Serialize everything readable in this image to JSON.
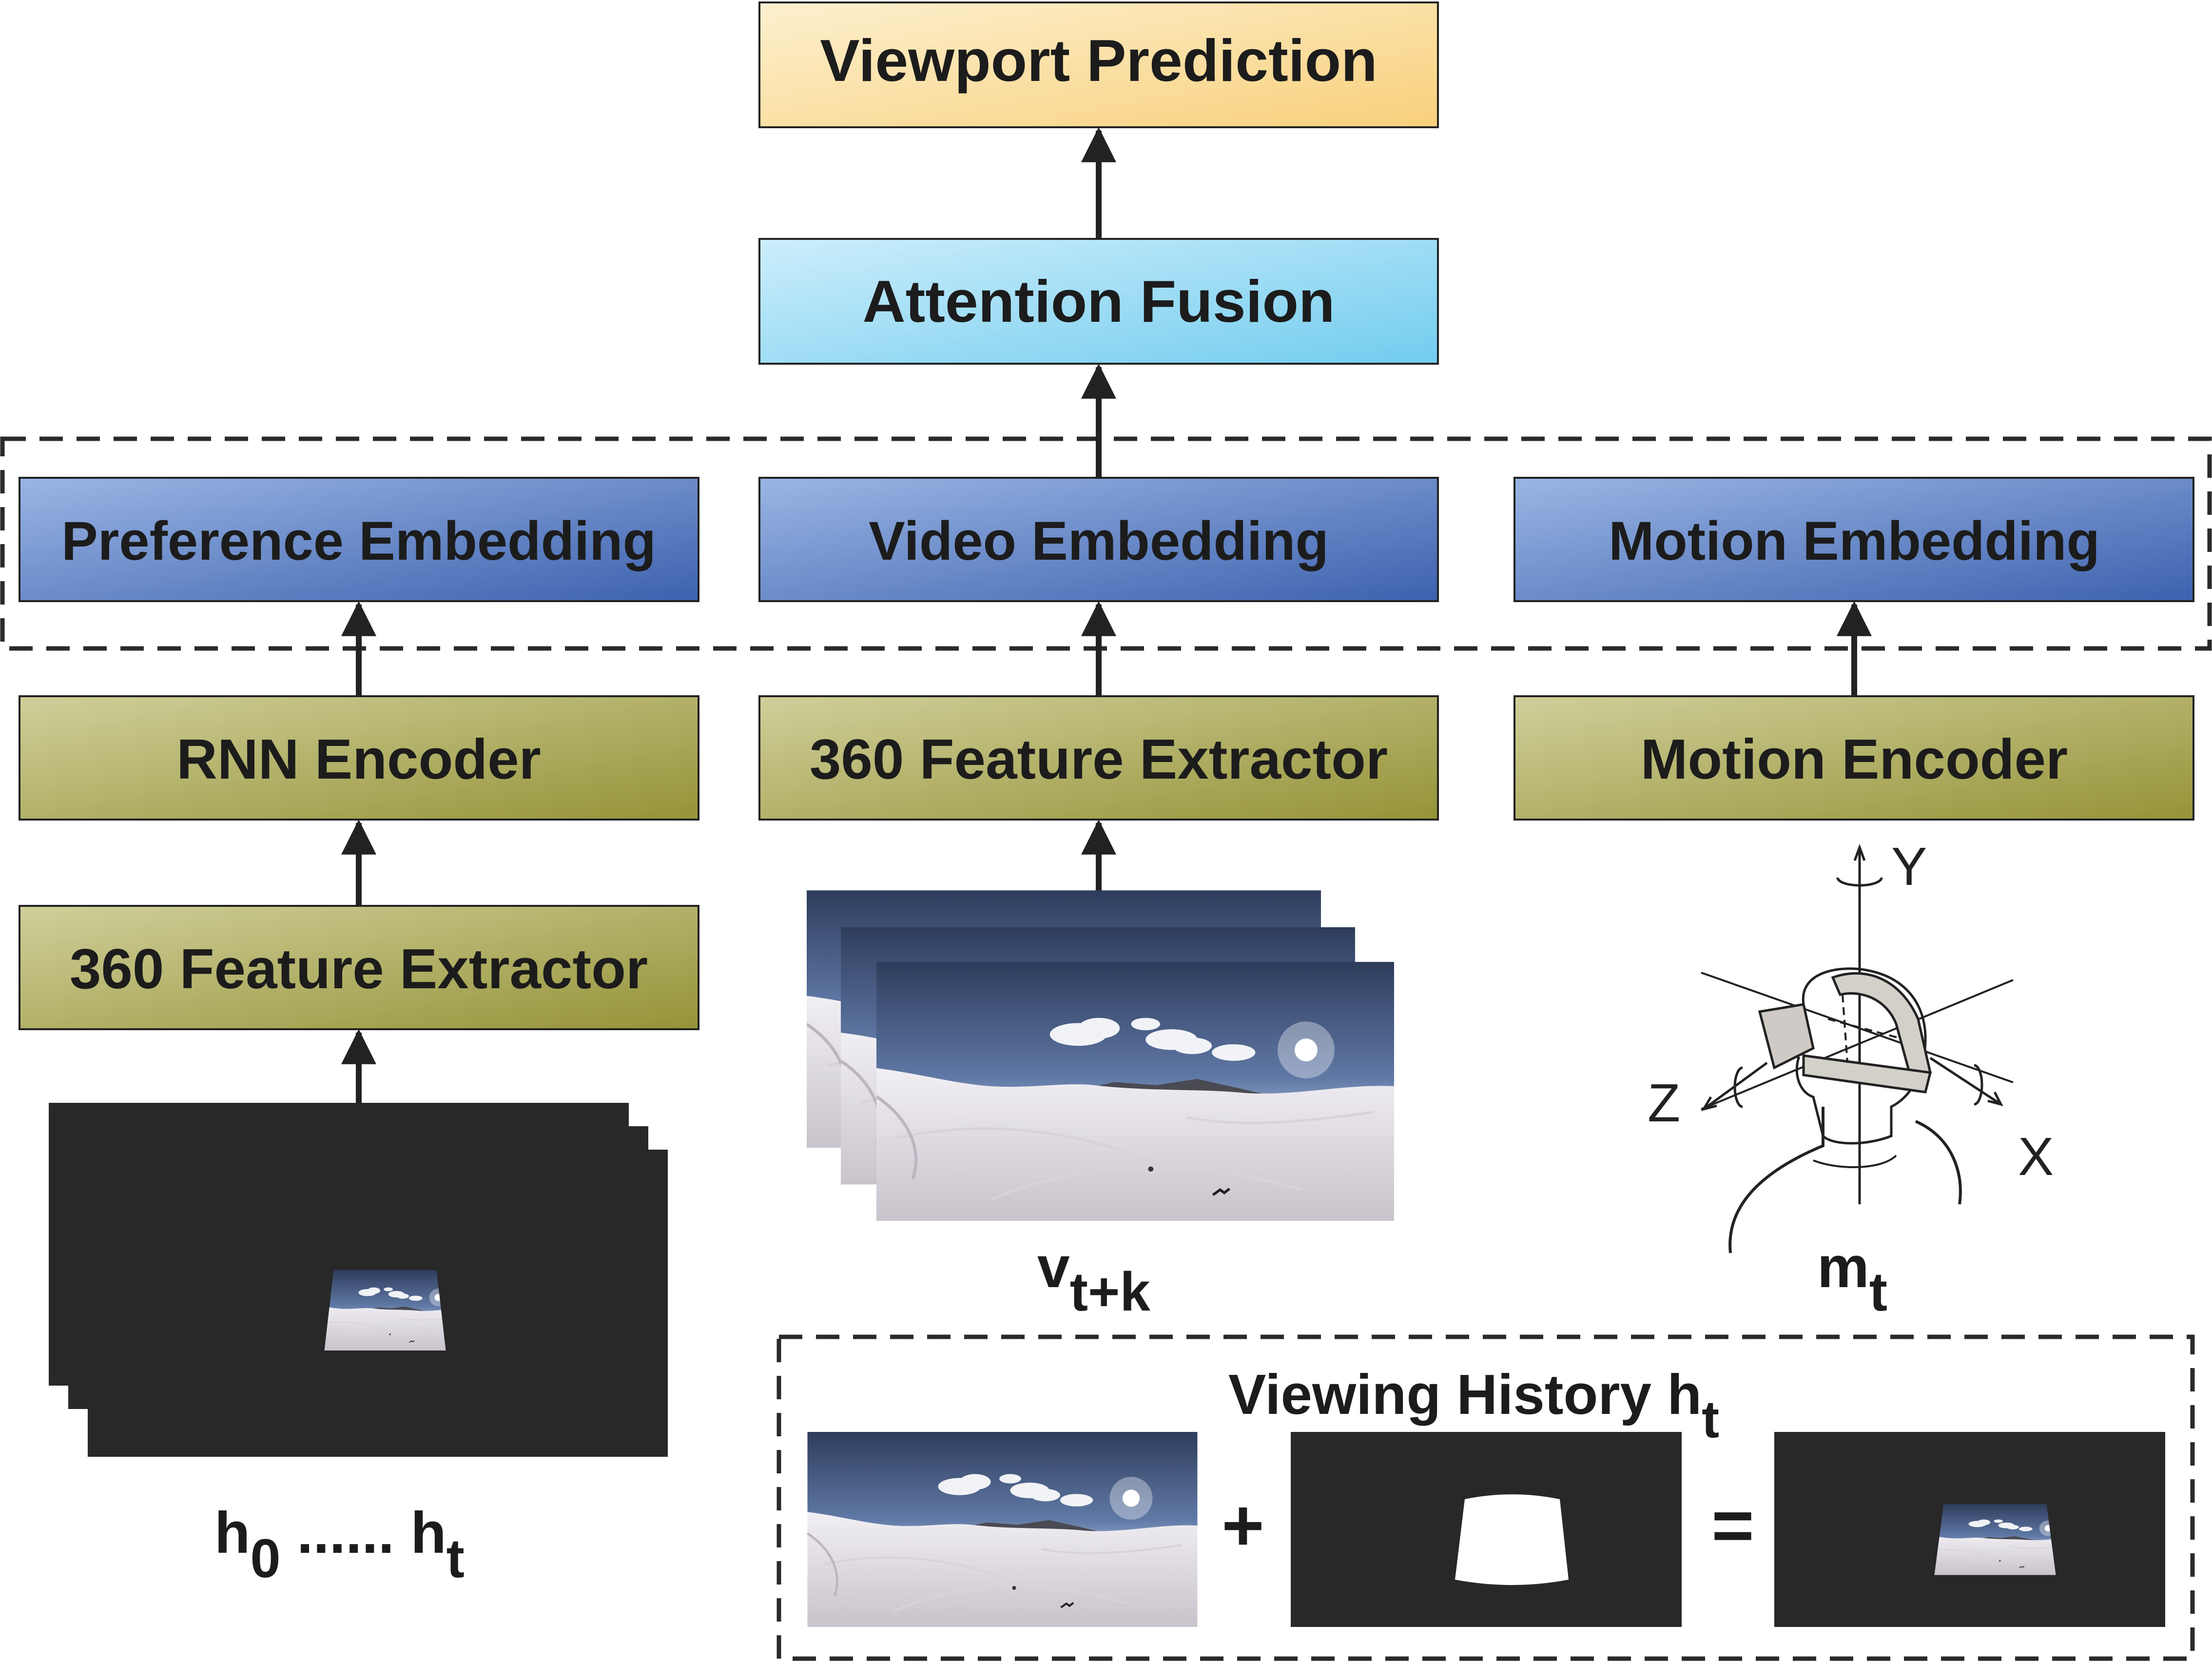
{
  "boxes": {
    "viewport_prediction": "Viewport Prediction",
    "attention_fusion": "Attention Fusion",
    "preference_embedding": "Preference Embedding",
    "video_embedding": "Video Embedding",
    "motion_embedding": "Motion Embedding",
    "rnn_encoder": "RNN Encoder",
    "feature_extractor_center": "360 Feature Extractor",
    "motion_encoder": "Motion Encoder",
    "feature_extractor_left": "360 Feature Extractor"
  },
  "labels": {
    "history_h": "h",
    "history_h_sub0": "0",
    "history_dots": " ...... h",
    "history_h_subt": "t",
    "video_v": "v",
    "video_sub": "t+k",
    "motion_m": "m",
    "motion_sub": "t",
    "axis_y": "Y",
    "axis_z": "Z",
    "axis_x": "X",
    "viewing_history": "Viewing History h",
    "viewing_history_sub": "t",
    "plus": "+",
    "equals": "="
  },
  "colors": {
    "prediction": [
      "#fdf0cf",
      "#f8d07c"
    ],
    "fusion": [
      "#cdeefb",
      "#72ccef"
    ],
    "embedding": [
      "#9ab6e4",
      "#3d61ae"
    ],
    "encoder": [
      "#d0cf9a",
      "#959338"
    ],
    "dark_frame": "#282828",
    "line": "#222222"
  },
  "icons": {
    "panorama": "snowy-mountain-panorama",
    "headset": "vr-headset-head-sketch"
  }
}
